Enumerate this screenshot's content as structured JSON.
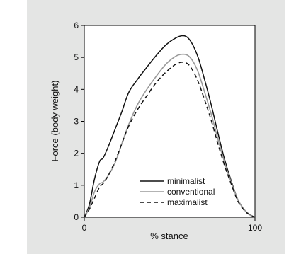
{
  "chart_data": {
    "type": "line",
    "xlabel": "% stance",
    "ylabel": "Force (body weight)",
    "xlim": [
      0,
      100
    ],
    "ylim": [
      0,
      6
    ],
    "x_ticks": [
      0,
      100
    ],
    "y_ticks": [
      0,
      1,
      2,
      3,
      4,
      5,
      6
    ],
    "grid": false,
    "legend_position": "bottom-center",
    "series": [
      {
        "name": "minimalist",
        "color": "#111111",
        "dash": "solid",
        "x": [
          0,
          3,
          6,
          9,
          11,
          14,
          18,
          22,
          26,
          31,
          36,
          42,
          48,
          54,
          58,
          61,
          64,
          67,
          70,
          74,
          78,
          82,
          86,
          90,
          94,
          97,
          100
        ],
        "y": [
          0,
          0.4,
          1.2,
          1.75,
          1.85,
          2.2,
          2.75,
          3.3,
          3.9,
          4.3,
          4.65,
          5.05,
          5.4,
          5.62,
          5.68,
          5.6,
          5.35,
          4.95,
          4.4,
          3.6,
          2.7,
          1.85,
          1.15,
          0.55,
          0.22,
          0.08,
          0
        ]
      },
      {
        "name": "conventional",
        "color": "#9a9a9a",
        "dash": "solid",
        "x": [
          0,
          3,
          6,
          9,
          11,
          14,
          18,
          22,
          26,
          31,
          36,
          42,
          48,
          54,
          58,
          61,
          64,
          67,
          70,
          74,
          78,
          82,
          86,
          90,
          94,
          97,
          100
        ],
        "y": [
          0,
          0.3,
          0.8,
          1.05,
          1.1,
          1.3,
          1.7,
          2.3,
          2.9,
          3.5,
          3.95,
          4.4,
          4.8,
          5.05,
          5.1,
          5.05,
          4.85,
          4.5,
          4.0,
          3.3,
          2.5,
          1.75,
          1.1,
          0.55,
          0.22,
          0.07,
          0
        ]
      },
      {
        "name": "maximalist",
        "color": "#111111",
        "dash": "dashed",
        "x": [
          0,
          3,
          6,
          9,
          11,
          14,
          18,
          22,
          26,
          31,
          36,
          42,
          48,
          54,
          58,
          61,
          64,
          67,
          70,
          74,
          78,
          82,
          86,
          90,
          94,
          97,
          100
        ],
        "y": [
          0,
          0.25,
          0.6,
          0.95,
          1.05,
          1.3,
          1.75,
          2.3,
          2.85,
          3.35,
          3.75,
          4.2,
          4.55,
          4.8,
          4.85,
          4.78,
          4.55,
          4.2,
          3.75,
          3.1,
          2.35,
          1.65,
          1.05,
          0.5,
          0.2,
          0.07,
          0
        ]
      }
    ]
  }
}
